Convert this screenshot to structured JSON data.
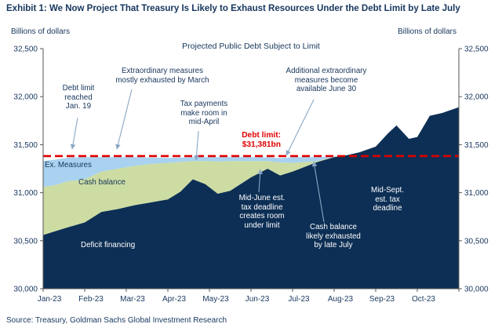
{
  "page": {
    "title": "Exhibit 1: We Now Project That Treasury Is Likely to Exhaust Resources Under the Debt Limit by Late July",
    "left_axis_unit": "Billions of dollars",
    "right_axis_unit": "Billions of dollars",
    "source": "Source: Treasury, Goldman Sachs Global Investment Research"
  },
  "annotations": {
    "debt_limit_reached": "Debt limit\nreached\nJan. 19",
    "extraordinary_measures": "Extraordinary measures\nmostly exhausted by March",
    "tax_payments": "Tax payments\nmake room in\nmid-April",
    "debt_limit_label": "Debt limit:\n$31,381bn",
    "additional_measures": "Additional extraordinary\nmeasures become\navailable June 30",
    "mid_june": "Mid-June est.\ntax deadline\ncreates room\nunder limit",
    "cash_exhausted": "Cash balance\nlikely exhausted\nby late July",
    "mid_sept": "Mid-Sept.\nest. tax\ndeadline",
    "ex_measures": "Ex. Measures",
    "cash_balance": "Cash balance",
    "deficit_financing": "Deficit financing"
  },
  "chart_data": {
    "type": "area",
    "title": "Projected Public Debt Subject to Limit",
    "ylabel": "Billions of dollars",
    "stacked": true,
    "ylim": [
      30000,
      32500
    ],
    "y_ticks": [
      30000,
      30500,
      31000,
      31500,
      32000,
      32500
    ],
    "x_tick_labels": [
      "Jan-23",
      "Feb-23",
      "Mar-23",
      "Apr-23",
      "May-23",
      "Jun-23",
      "Jul-23",
      "Aug-23",
      "Sep-23",
      "Oct-23"
    ],
    "x_months_from_jan2023": [
      0,
      0.3,
      0.6,
      1,
      1.4,
      1.8,
      2.2,
      2.6,
      3,
      3.3,
      3.6,
      3.9,
      4.2,
      4.5,
      5,
      5.4,
      5.7,
      6,
      6.3,
      6.6,
      7,
      7.3,
      7.6,
      8,
      8.3,
      8.5,
      8.8,
      9,
      9.3,
      9.6,
      10
    ],
    "series": [
      {
        "name": "Deficit financing",
        "color": "#0d2f55",
        "cumulative_top": [
          30560,
          30600,
          30640,
          30690,
          30800,
          30830,
          30870,
          30900,
          30930,
          31010,
          31140,
          31090,
          30990,
          31020,
          31160,
          31250,
          31180,
          31220,
          31270,
          31320,
          31370,
          31390,
          31420,
          31480,
          31620,
          31700,
          31560,
          31580,
          31800,
          31830,
          31890
        ]
      },
      {
        "name": "Cash balance",
        "color": "#ccdca3",
        "cumulative_top": [
          31060,
          31080,
          31120,
          31140,
          31220,
          31250,
          31280,
          31300,
          31310,
          31320,
          31330,
          31330,
          31325,
          31330,
          31330,
          31330,
          31315,
          31310,
          31320,
          31330,
          31374,
          31390,
          31420,
          31480,
          31620,
          31700,
          31560,
          31580,
          31800,
          31830,
          31890
        ]
      },
      {
        "name": "Ex. Measures",
        "color": "#a8d2ef",
        "cumulative_top": [
          31330,
          31345,
          31365,
          31370,
          31370,
          31370,
          31370,
          31365,
          31362,
          31365,
          31370,
          31370,
          31370,
          31370,
          31370,
          31368,
          31360,
          31370,
          31370,
          31370,
          31378,
          31390,
          31420,
          31480,
          31620,
          31700,
          31560,
          31580,
          31800,
          31830,
          31890
        ]
      }
    ],
    "reference_line": {
      "label": "Debt limit: $31,381bn",
      "value": 31381,
      "color": "#e00000",
      "style": "dashed"
    },
    "colors": {
      "axis_text": "#17365d",
      "axis_line": "#555555",
      "arrow": "#8aa7c5"
    }
  }
}
